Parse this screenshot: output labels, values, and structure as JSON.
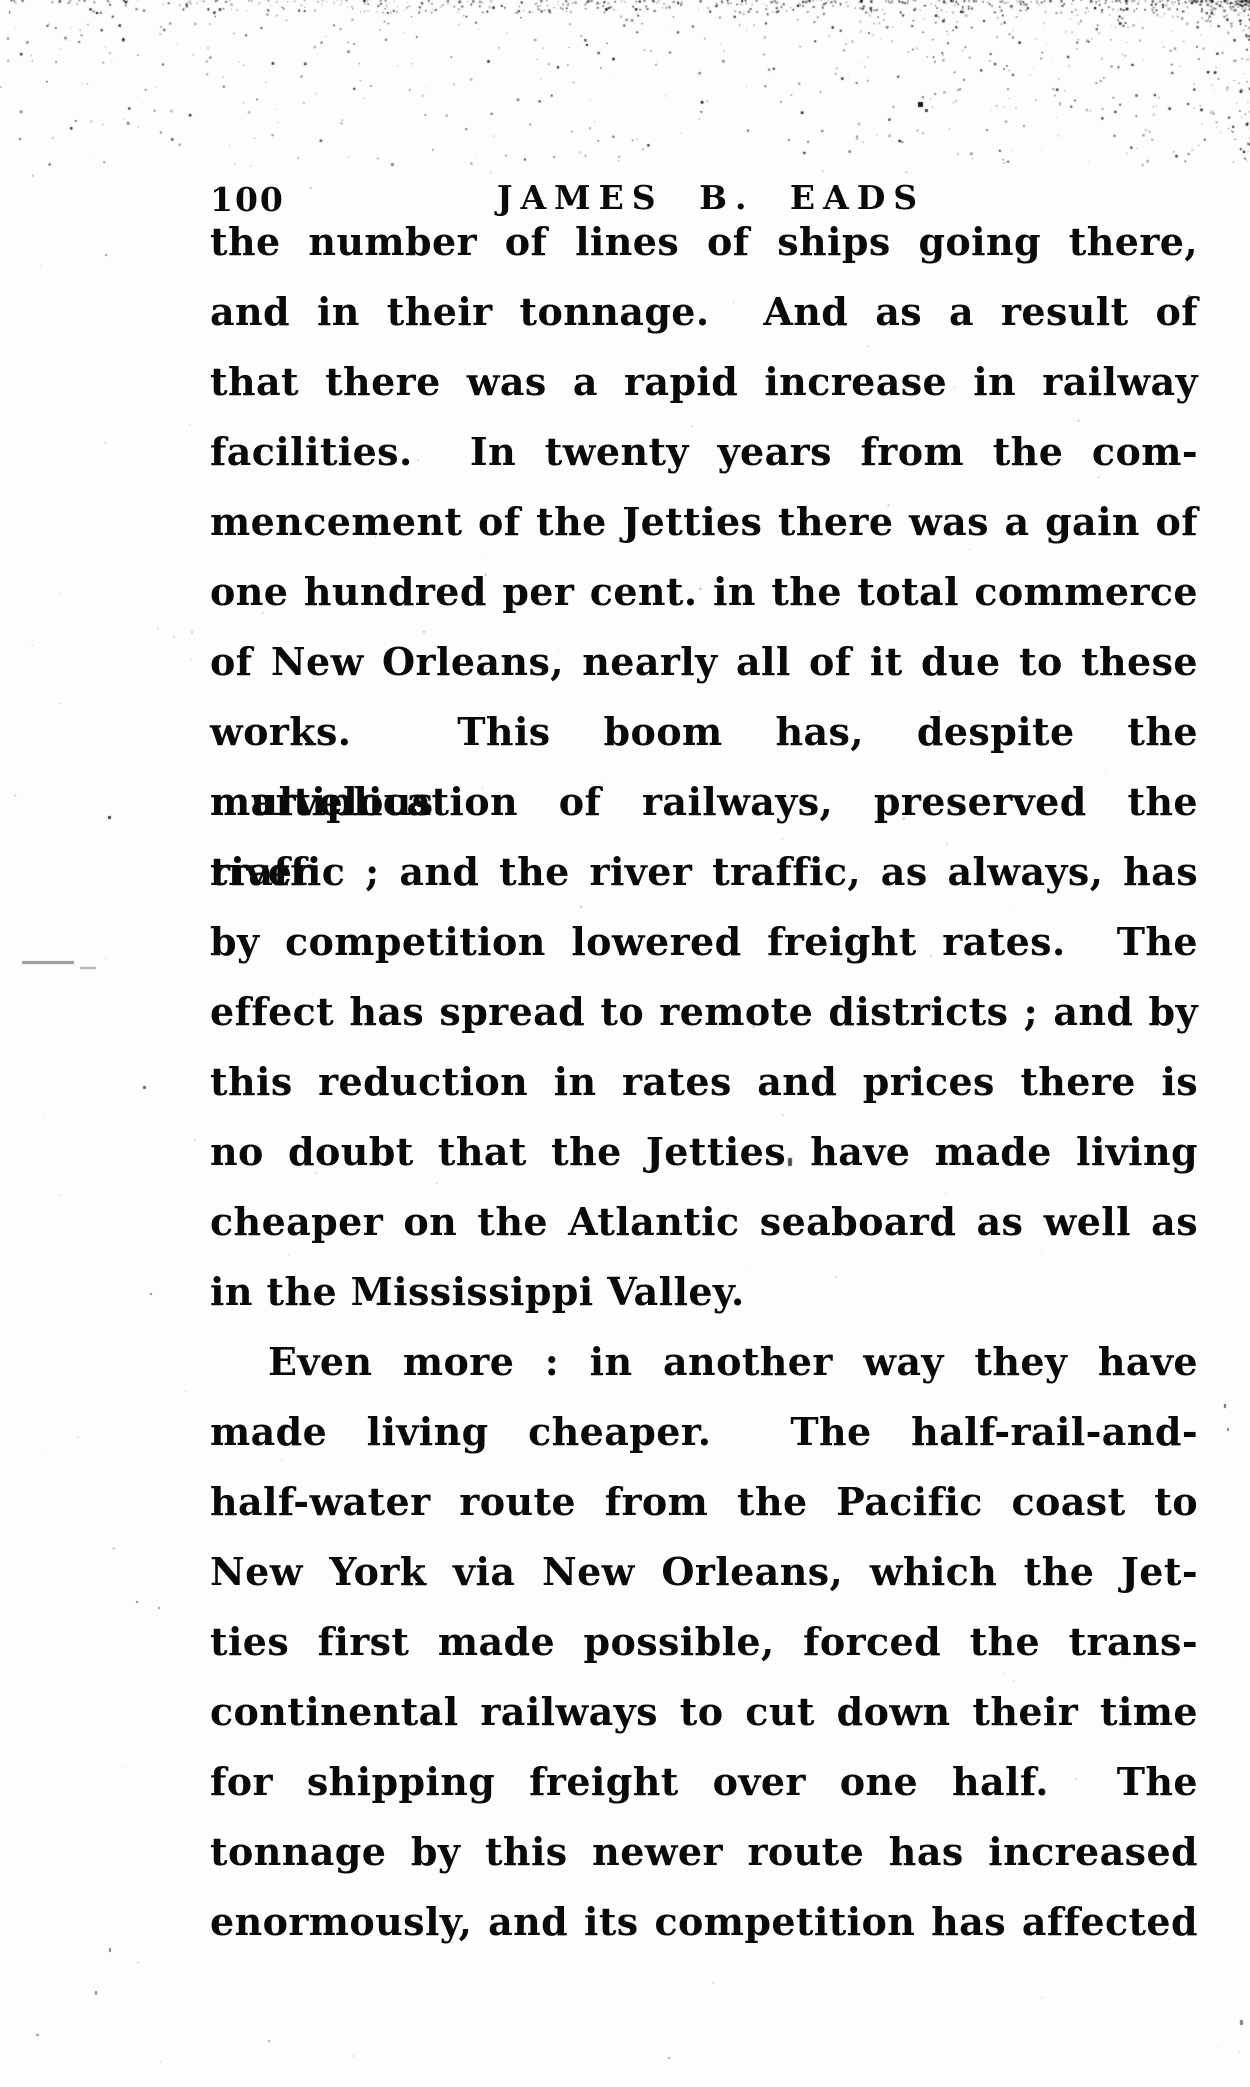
{
  "header": {
    "page_number": "100",
    "title": "JAMES B. EADS"
  },
  "body": {
    "paragraphs": [
      {
        "indent": false,
        "last_line_flush": true,
        "lines": [
          "the number of lines of ships going there,",
          "and in their tonnage.  And as a result of",
          "that there was a rapid increase in railway",
          "facilities.  In twenty years from the com-",
          "mencement of the Jetties there was a gain of",
          "one hundred per cent. in the total commerce",
          "of New Orleans, nearly all of it due to these",
          "works.  This boom has, despite the marvelous",
          "multiplication of railways, preserved the river",
          "traffic ; and the river traffic, as always, has",
          "by competition lowered freight rates.  The",
          "effect has spread to remote districts ; and by",
          "this reduction in rates and prices there is",
          "no doubt that the Jetties have made living",
          "cheaper on the Atlantic seaboard as well as",
          "in the Mississippi Valley."
        ]
      },
      {
        "indent": true,
        "last_line_flush": false,
        "lines": [
          "Even more : in another way they have",
          "made living cheaper.  The half-rail-and-",
          "half-water route from the Pacific coast to",
          "New York via New Orleans, which the Jet-",
          "ties first made possible, forced the trans-",
          "continental railways to cut down their time",
          "for shipping freight over one half.  The",
          "tonnage by this newer route has increased",
          "enormously, and its competition has affected"
        ]
      }
    ]
  },
  "colors": {
    "paper": "#fdfdfc",
    "ink": "#0a0a0a"
  }
}
